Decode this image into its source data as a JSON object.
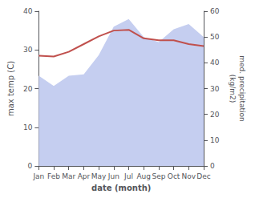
{
  "chart_data": {
    "type": "line",
    "categories": [
      "Jan",
      "Feb",
      "Mar",
      "Apr",
      "May",
      "Jun",
      "Jul",
      "Aug",
      "Sep",
      "Oct",
      "Nov",
      "Dec"
    ],
    "xlabel": "date (month)",
    "ylabel": "max temp (C)",
    "y2label": "med. precipitation\n(kg/m2)",
    "series": [
      {
        "type": "area",
        "axis": "y2",
        "color": "#c5cef0",
        "values": [
          35.0,
          31.0,
          35.0,
          35.5,
          43.0,
          54.0,
          57.0,
          50.0,
          48.0,
          53.0,
          55.0,
          50.0
        ]
      },
      {
        "type": "line",
        "color": "#c0504d",
        "values": [
          28.5,
          28.3,
          29.5,
          31.5,
          33.5,
          35.0,
          35.2,
          33.0,
          32.5,
          32.5,
          31.5,
          31.0
        ]
      }
    ],
    "ylim": [
      0,
      40
    ],
    "yticks": [
      0,
      10,
      20,
      30,
      40
    ],
    "y2lim": [
      0,
      60
    ],
    "y2ticks": [
      0,
      10,
      20,
      30,
      40,
      50,
      60
    ],
    "grid": false
  }
}
